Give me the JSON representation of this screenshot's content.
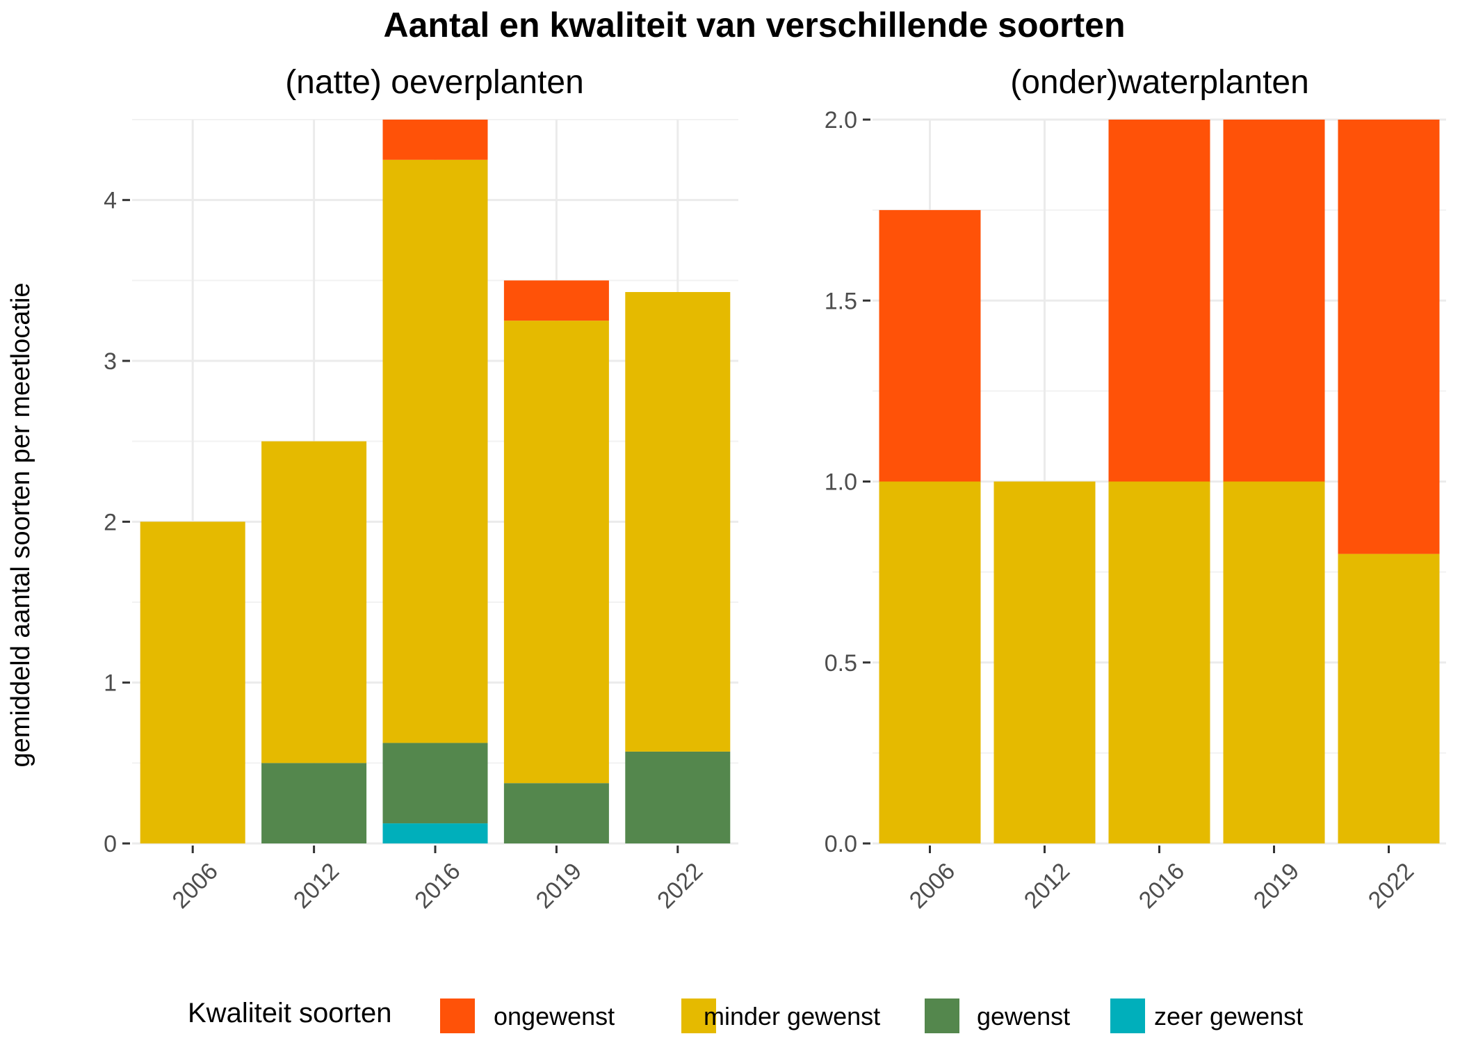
{
  "title": "Aantal en kwaliteit van verschillende soorten",
  "ylabel": "gemiddeld aantal soorten per meetlocatie",
  "legend": {
    "title": "Kwaliteit soorten",
    "placement": "bottom",
    "items": [
      {
        "label": "ongewenst",
        "color": "#FF5208"
      },
      {
        "label": "minder gewenst",
        "color": "#E5BA00"
      },
      {
        "label": "gewenst",
        "color": "#54874D"
      },
      {
        "label": "zeer gewenst",
        "color": "#00AFBB"
      }
    ]
  },
  "chart_data": [
    {
      "type": "bar",
      "stacked": true,
      "title": "(natte) oeverplanten",
      "categories": [
        "2006",
        "2012",
        "2016",
        "2019",
        "2022"
      ],
      "ylim": [
        0,
        4.5
      ],
      "yticks": [
        0,
        1,
        2,
        3,
        4
      ],
      "ytick_labels": [
        "0",
        "1",
        "2",
        "3",
        "4"
      ],
      "grid": true,
      "series": [
        {
          "name": "zeer gewenst",
          "color": "#00AFBB",
          "values": [
            0,
            0,
            0.125,
            0,
            0
          ]
        },
        {
          "name": "gewenst",
          "color": "#54874D",
          "values": [
            0,
            0.5,
            0.5,
            0.375,
            0.571
          ]
        },
        {
          "name": "minder gewenst",
          "color": "#E5BA00",
          "values": [
            2,
            2,
            3.625,
            2.875,
            2.857
          ]
        },
        {
          "name": "ongewenst",
          "color": "#FF5208",
          "values": [
            0,
            0,
            0.25,
            0.25,
            0
          ]
        }
      ]
    },
    {
      "type": "bar",
      "stacked": true,
      "title": "(onder)waterplanten",
      "categories": [
        "2006",
        "2012",
        "2016",
        "2019",
        "2022"
      ],
      "ylim": [
        0,
        2.0
      ],
      "yticks": [
        0,
        0.5,
        1.0,
        1.5,
        2.0
      ],
      "ytick_labels": [
        "0.0",
        "0.5",
        "1.0",
        "1.5",
        "2.0"
      ],
      "grid": true,
      "series": [
        {
          "name": "zeer gewenst",
          "color": "#00AFBB",
          "values": [
            0,
            0,
            0,
            0,
            0
          ]
        },
        {
          "name": "gewenst",
          "color": "#54874D",
          "values": [
            0,
            0,
            0,
            0,
            0
          ]
        },
        {
          "name": "minder gewenst",
          "color": "#E5BA00",
          "values": [
            1.0,
            1.0,
            1.0,
            1.0,
            0.8
          ]
        },
        {
          "name": "ongewenst",
          "color": "#FF5208",
          "values": [
            0.75,
            0,
            1.0,
            1.0,
            1.2
          ]
        }
      ]
    }
  ]
}
